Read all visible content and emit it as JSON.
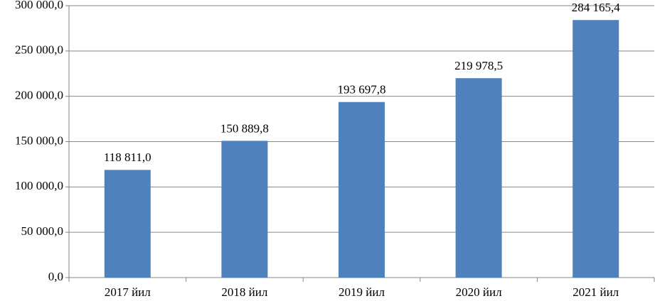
{
  "chart_data": {
    "type": "bar",
    "categories": [
      "2017 йил",
      "2018 йил",
      "2019 йил",
      "2020 йил",
      "2021 йил"
    ],
    "values": [
      118811.0,
      150889.8,
      193697.8,
      219978.5,
      284165.4
    ],
    "value_labels": [
      "118 811,0",
      "150 889,8",
      "193 697,8",
      "219 978,5",
      "284 165,4"
    ],
    "color": "#4f81bd",
    "ylim": [
      0,
      300000
    ],
    "yticks": [
      {
        "value": 0,
        "label": "0,0"
      },
      {
        "value": 50000,
        "label": "50 000,0"
      },
      {
        "value": 100000,
        "label": "100 000,0"
      },
      {
        "value": 150000,
        "label": "150 000,0"
      },
      {
        "value": 200000,
        "label": "200 000,0"
      },
      {
        "value": 250000,
        "label": "250 000,0"
      },
      {
        "value": 300000,
        "label": "300 000,0"
      }
    ],
    "grid": true
  }
}
